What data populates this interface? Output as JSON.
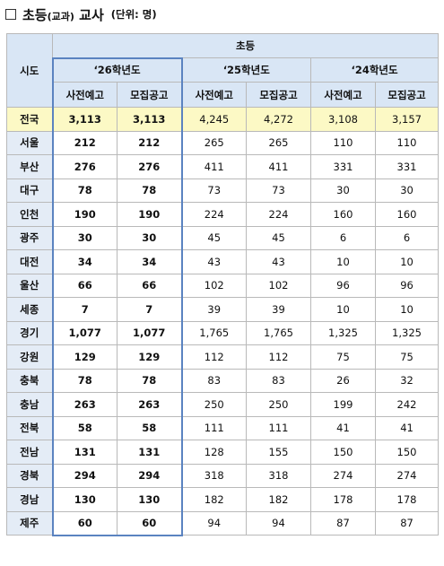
{
  "title": {
    "main": "초등",
    "sub": "(교과)",
    "label": "교사",
    "unit": "(단위: 명)"
  },
  "header": {
    "region_col": "시도",
    "group": "초등",
    "years": [
      "‘26학년도",
      "‘25학년도",
      "‘24학년도"
    ],
    "sub_cols": [
      "사전예고",
      "모집공고"
    ]
  },
  "rows": [
    {
      "region": "전국",
      "values": [
        "3,113",
        "3,113",
        "4,245",
        "4,272",
        "3,108",
        "3,157"
      ]
    },
    {
      "region": "서울",
      "values": [
        "212",
        "212",
        "265",
        "265",
        "110",
        "110"
      ]
    },
    {
      "region": "부산",
      "values": [
        "276",
        "276",
        "411",
        "411",
        "331",
        "331"
      ]
    },
    {
      "region": "대구",
      "values": [
        "78",
        "78",
        "73",
        "73",
        "30",
        "30"
      ]
    },
    {
      "region": "인천",
      "values": [
        "190",
        "190",
        "224",
        "224",
        "160",
        "160"
      ]
    },
    {
      "region": "광주",
      "values": [
        "30",
        "30",
        "45",
        "45",
        "6",
        "6"
      ]
    },
    {
      "region": "대전",
      "values": [
        "34",
        "34",
        "43",
        "43",
        "10",
        "10"
      ]
    },
    {
      "region": "울산",
      "values": [
        "66",
        "66",
        "102",
        "102",
        "96",
        "96"
      ]
    },
    {
      "region": "세종",
      "values": [
        "7",
        "7",
        "39",
        "39",
        "10",
        "10"
      ]
    },
    {
      "region": "경기",
      "values": [
        "1,077",
        "1,077",
        "1,765",
        "1,765",
        "1,325",
        "1,325"
      ]
    },
    {
      "region": "강원",
      "values": [
        "129",
        "129",
        "112",
        "112",
        "75",
        "75"
      ]
    },
    {
      "region": "충북",
      "values": [
        "78",
        "78",
        "83",
        "83",
        "26",
        "32"
      ]
    },
    {
      "region": "충남",
      "values": [
        "263",
        "263",
        "250",
        "250",
        "199",
        "242"
      ]
    },
    {
      "region": "전북",
      "values": [
        "58",
        "58",
        "111",
        "111",
        "41",
        "41"
      ]
    },
    {
      "region": "전남",
      "values": [
        "131",
        "131",
        "128",
        "155",
        "150",
        "150"
      ]
    },
    {
      "region": "경북",
      "values": [
        "294",
        "294",
        "318",
        "318",
        "274",
        "274"
      ]
    },
    {
      "region": "경남",
      "values": [
        "130",
        "130",
        "182",
        "182",
        "178",
        "178"
      ]
    },
    {
      "region": "제주",
      "values": [
        "60",
        "60",
        "94",
        "94",
        "87",
        "87"
      ]
    }
  ]
}
